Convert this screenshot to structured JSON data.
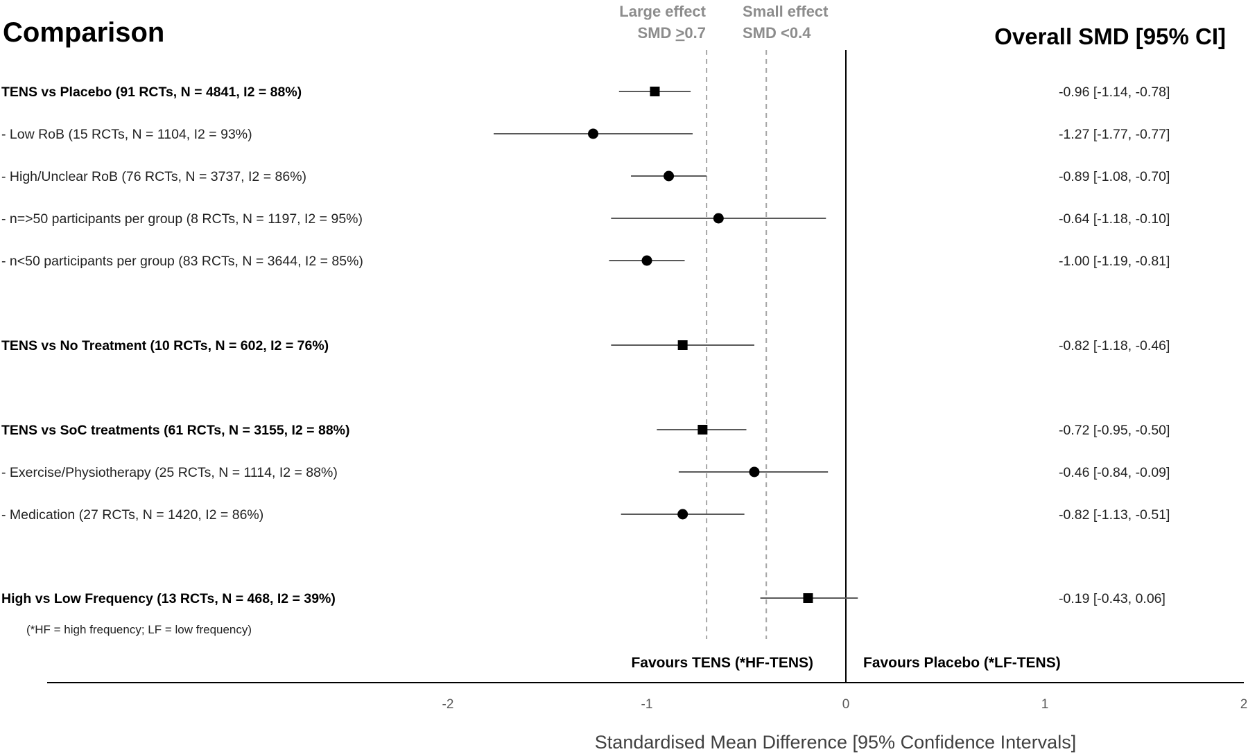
{
  "chart_data": {
    "type": "forest",
    "title_left": "Comparison",
    "title_right": "Overall SMD [95% CI]",
    "xlabel": "Standardised Mean Difference [95% Confidence Intervals]",
    "xlim": [
      -2,
      2
    ],
    "xticks": [
      -2,
      -1,
      0,
      1,
      2
    ],
    "xtick_labels": [
      "-2",
      "-1",
      "0",
      "1",
      "2"
    ],
    "reference_lines": [
      {
        "x": -0.7,
        "label_line1": "Large effect",
        "label_line2_prefix": "SMD ",
        "label_line2_underlined": ">",
        "label_line2_suffix": "0.7",
        "style": "dashed"
      },
      {
        "x": -0.4,
        "label_line1": "Small effect",
        "label_line2": "SMD <0.4",
        "style": "dashed"
      }
    ],
    "null_line": 0,
    "favours_left": "Favours TENS (*HF-TENS)",
    "favours_right": "Favours Placebo (*LF-TENS)",
    "footnote": "(*HF = high frequency; LF = low frequency)",
    "rows": [
      {
        "label": "TENS vs Placebo (91 RCTs, N = 4841, I2 = 88%)",
        "bold": true,
        "marker": "square",
        "est": -0.96,
        "lo": -1.14,
        "hi": -0.78,
        "ci_text": "-0.96 [-1.14, -0.78]"
      },
      {
        "label": "- Low RoB (15 RCTs, N = 1104, I2 = 93%)",
        "bold": false,
        "marker": "circle",
        "est": -1.27,
        "lo": -1.77,
        "hi": -0.77,
        "ci_text": "-1.27 [-1.77, -0.77]"
      },
      {
        "label": "- High/Unclear RoB (76 RCTs, N = 3737, I2 = 86%)",
        "bold": false,
        "marker": "circle",
        "est": -0.89,
        "lo": -1.08,
        "hi": -0.7,
        "ci_text": "-0.89 [-1.08, -0.70]"
      },
      {
        "label": "- n=>50 participants per group (8 RCTs, N = 1197, I2 = 95%)",
        "bold": false,
        "marker": "circle",
        "est": -0.64,
        "lo": -1.18,
        "hi": -0.1,
        "ci_text": "-0.64 [-1.18, -0.10]"
      },
      {
        "label": "- n<50 participants per group (83 RCTs, N = 3644, I2 = 85%)",
        "bold": false,
        "marker": "circle",
        "est": -1.0,
        "lo": -1.19,
        "hi": -0.81,
        "ci_text": "-1.00 [-1.19, -0.81]"
      },
      {
        "label": "TENS vs No Treatment (10 RCTs, N = 602, I2 = 76%)",
        "bold": true,
        "marker": "square",
        "est": -0.82,
        "lo": -1.18,
        "hi": -0.46,
        "ci_text": "-0.82 [-1.18, -0.46]"
      },
      {
        "label": "TENS vs SoC treatments (61 RCTs, N = 3155, I2 = 88%)",
        "bold": true,
        "marker": "square",
        "est": -0.72,
        "lo": -0.95,
        "hi": -0.5,
        "ci_text": "-0.72 [-0.95, -0.50]"
      },
      {
        "label": "- Exercise/Physiotherapy (25 RCTs, N = 1114, I2 = 88%)",
        "bold": false,
        "marker": "circle",
        "est": -0.46,
        "lo": -0.84,
        "hi": -0.09,
        "ci_text": "-0.46 [-0.84, -0.09]"
      },
      {
        "label": "- Medication (27 RCTs, N = 1420, I2 = 86%)",
        "bold": false,
        "marker": "circle",
        "est": -0.82,
        "lo": -1.13,
        "hi": -0.51,
        "ci_text": "-0.82 [-1.13, -0.51]"
      },
      {
        "label": "High vs Low Frequency (13 RCTs, N = 468, I2 = 39%)",
        "bold": true,
        "marker": "square",
        "est": -0.19,
        "lo": -0.43,
        "hi": 0.06,
        "ci_text": "-0.19 [-0.43, 0.06]"
      }
    ],
    "colors": {
      "ci_line": "#595959",
      "ref_line": "#a6a6a6",
      "ref_text": "#8c8c8c",
      "marker": "#000000",
      "axis": "#000000",
      "tick_text": "#595959"
    }
  }
}
